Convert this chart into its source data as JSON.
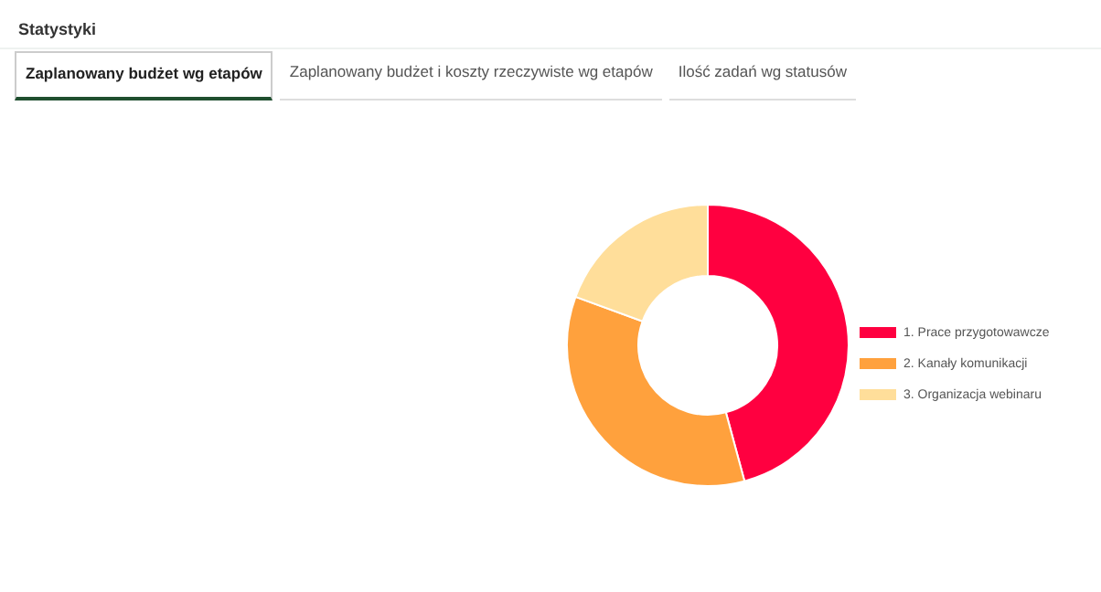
{
  "chart_data": {
    "type": "donut",
    "title": "Statystyki",
    "annotations": [
      "Zaplanowany budżet wg etapów",
      "Zaplanowany budżet i koszty rzeczywiste wg etapów",
      "Ilość zadań wg statusów"
    ],
    "categories": [
      "1. Prace przygotowawcze",
      "2. Kanały komunikacji",
      "3. Organizacja webinaru"
    ],
    "values": [
      45.8,
      34.8,
      19.4
    ],
    "colors": [
      "#ff0040",
      "#ffa13d",
      "#ffde9a"
    ],
    "legend": "right"
  }
}
